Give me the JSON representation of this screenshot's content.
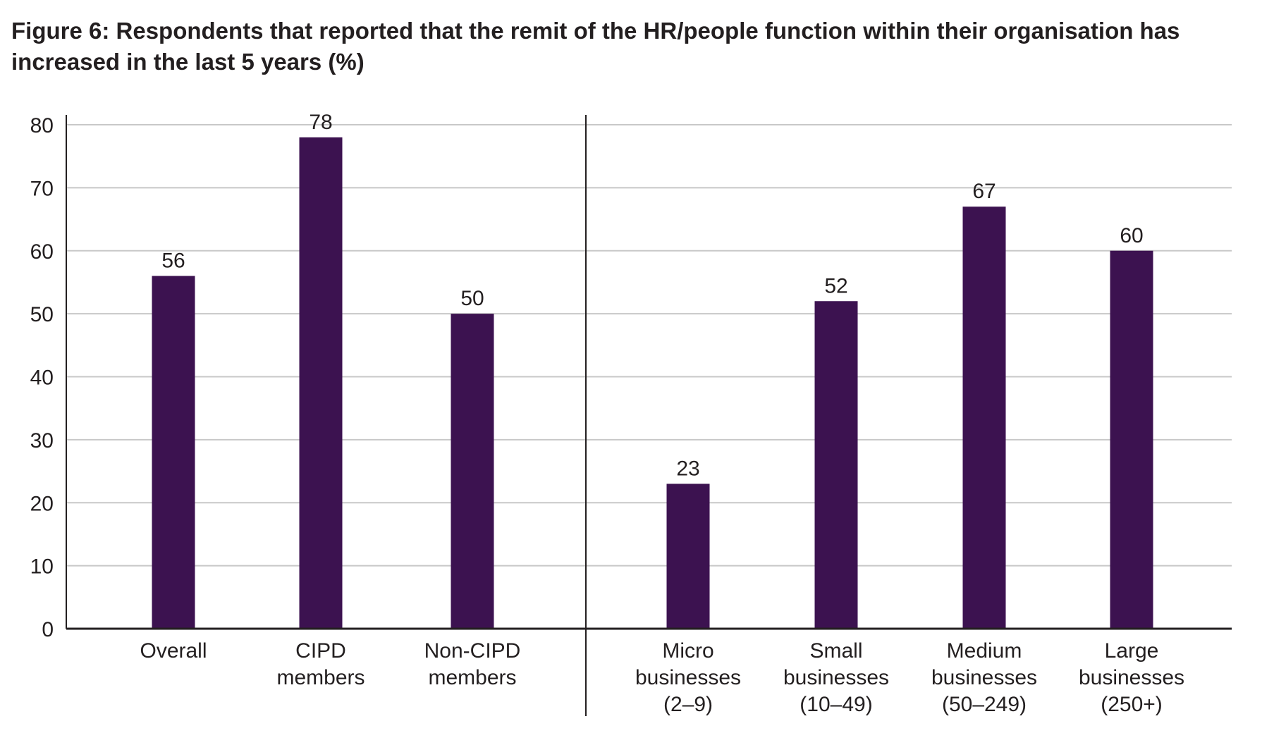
{
  "chart_data": {
    "type": "bar",
    "title": "Figure 6: Respondents that reported that the remit of the HR/people function within their organisation has increased in the last 5 years (%)",
    "xlabel": "",
    "ylabel": "",
    "ylim": [
      0,
      80
    ],
    "yticks": [
      0,
      10,
      20,
      30,
      40,
      50,
      60,
      70,
      80
    ],
    "grid": true,
    "categories": [
      [
        "Overall"
      ],
      [
        "CIPD",
        "members"
      ],
      [
        "Non-CIPD",
        "members"
      ],
      [
        "Micro",
        "businesses",
        "(2–9)"
      ],
      [
        "Small",
        "businesses",
        "(10–49)"
      ],
      [
        "Medium",
        "businesses",
        "(50–249)"
      ],
      [
        "Large",
        "businesses",
        "(250+)"
      ]
    ],
    "values": [
      56,
      78,
      50,
      23,
      52,
      67,
      60
    ],
    "groups_separator_after_index": 2,
    "bar_color": "#3c1250",
    "grid_color": "#c8c8c8"
  }
}
